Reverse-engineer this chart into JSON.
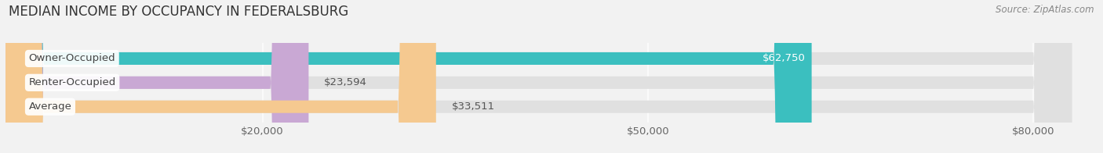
{
  "title": "MEDIAN INCOME BY OCCUPANCY IN FEDERALSBURG",
  "source": "Source: ZipAtlas.com",
  "categories": [
    "Owner-Occupied",
    "Renter-Occupied",
    "Average"
  ],
  "values": [
    62750,
    23594,
    33511
  ],
  "bar_colors": [
    "#3bbfbf",
    "#c9a8d4",
    "#f5c990"
  ],
  "bar_labels": [
    "$62,750",
    "$23,594",
    "$33,511"
  ],
  "xlim": [
    0,
    85000
  ],
  "xticks": [
    20000,
    50000,
    80000
  ],
  "xticklabels": [
    "$20,000",
    "$50,000",
    "$80,000"
  ],
  "bg_color": "#f2f2f2",
  "bar_bg_color": "#e0e0e0",
  "label_fontsize": 9.5,
  "title_fontsize": 12,
  "source_fontsize": 8.5,
  "cat_label_color": "#444444",
  "value_label_inside_color": "#ffffff",
  "value_label_outside_color": "#555555"
}
